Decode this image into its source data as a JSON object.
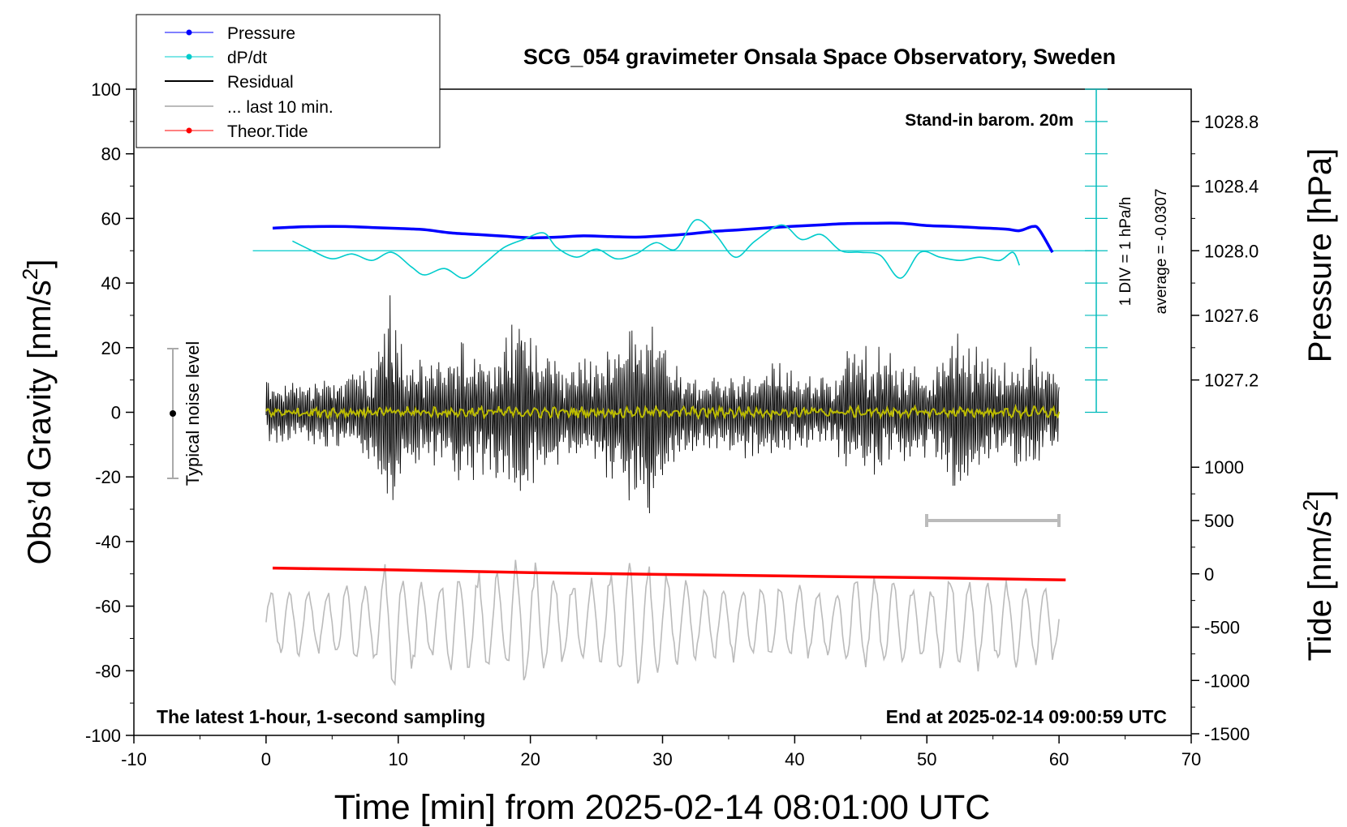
{
  "chart_data": {
    "type": "line",
    "title": "SCG_054 gravimeter Onsala Space Observatory, Sweden",
    "xlabel": "Time [min] from 2025-02-14 08:01:00 UTC",
    "ylabel_main": "Obs’d Gravity [nm/s",
    "ylabel_pressure": "Pressure [hPa]",
    "ylabel_tide": "Tide [nm/s",
    "xlim": [
      -10,
      70
    ],
    "ylim": [
      -100,
      100
    ],
    "x_ticks": [
      "-10",
      "0",
      "10",
      "20",
      "30",
      "40",
      "50",
      "60",
      "70"
    ],
    "y_ticks": [
      "100",
      "80",
      "60",
      "40",
      "20",
      "0",
      "-20",
      "-40",
      "-60",
      "-80",
      "-100"
    ],
    "pressure_ticks": [
      "1028.8",
      "1028.4",
      "1028.0",
      "1027.6",
      "1027.2"
    ],
    "tide_ticks": [
      "1000",
      "500",
      "0",
      "-500",
      "-1000",
      "-1500"
    ],
    "legend": [
      {
        "label": "Pressure",
        "color": "#0000ff"
      },
      {
        "label": "dP/dt",
        "color": "#00cccc"
      },
      {
        "label": "Residual",
        "color": "#000000"
      },
      {
        "label": "... last 10 min.",
        "color": "#bbbbbb"
      },
      {
        "label": "Theor.Tide",
        "color": "#ff0000"
      }
    ],
    "annotations": {
      "stand_in": "Stand-in barom. 20m",
      "div_label": "1 DIV = 1 hPa/h",
      "average_label": "average = -0.0307",
      "noise_label": "Typical noise level",
      "bottom_left": "The latest 1-hour, 1-second sampling",
      "bottom_right": "End at 2025-02-14 09:00:59 UTC"
    },
    "series": [
      {
        "name": "Pressure",
        "color": "#0000ff",
        "x": [
          0.5,
          2,
          4,
          6,
          8,
          10,
          12,
          14,
          16,
          18,
          20,
          22,
          24,
          26,
          28,
          30,
          32,
          34,
          36,
          38,
          40,
          42,
          44,
          46,
          48,
          50,
          52,
          54,
          56,
          57,
          58,
          58.5,
          59.5
        ],
        "y": [
          57,
          57.3,
          57.5,
          57.5,
          57.2,
          56.9,
          56.5,
          55.5,
          55,
          54.5,
          54,
          54.2,
          54.6,
          54.4,
          54.2,
          54.6,
          55.2,
          56,
          56.5,
          57.1,
          57.6,
          58,
          58.4,
          58.5,
          58.5,
          57.8,
          57.5,
          57.1,
          56.7,
          56.2,
          57.5,
          56.5,
          49.5
        ]
      },
      {
        "name": "dP/dt",
        "color": "#00cccc",
        "baseline": 50,
        "x": [
          2,
          3.5,
          5,
          6.5,
          8,
          9.5,
          11,
          12,
          13.5,
          15,
          16.5,
          18,
          19.5,
          21,
          22,
          23.5,
          25,
          26.5,
          28,
          29.5,
          31,
          32.5,
          34,
          35.5,
          37,
          39,
          40.5,
          42,
          43.5,
          45,
          46.5,
          48,
          49.5,
          51,
          52.5,
          54,
          55.5,
          56.5,
          57
        ],
        "y": [
          53,
          50,
          47.5,
          49,
          47,
          49.5,
          45,
          42.5,
          44.5,
          41.5,
          46,
          51,
          53.5,
          55.5,
          51,
          48,
          50.5,
          47.5,
          49,
          52.5,
          50.5,
          59.5,
          55,
          48,
          53,
          58,
          53.5,
          55,
          50,
          49.5,
          48.5,
          41.5,
          49.5,
          48,
          47,
          48,
          47,
          49.5,
          45.5
        ]
      },
      {
        "name": "Theor.Tide",
        "color": "#ff0000",
        "x": [
          0.5,
          10,
          20,
          30,
          40,
          50,
          60.5
        ],
        "y": [
          -48.2,
          -48.8,
          -49.6,
          -50.2,
          -50.7,
          -51.2,
          -51.9
        ]
      }
    ]
  }
}
